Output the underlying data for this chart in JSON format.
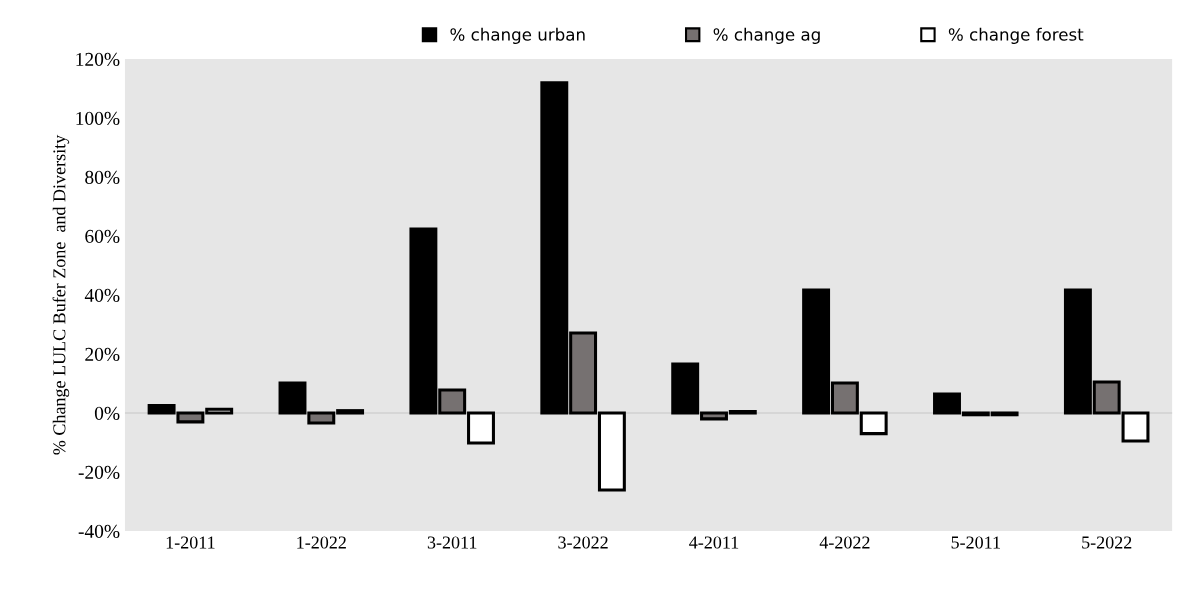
{
  "chart_data": {
    "type": "bar",
    "ylabel": "% Change LULC Bufer Zone  and Diversity",
    "categories": [
      "1-2011",
      "1-2022",
      "3-2011",
      "3-2022",
      "4-2011",
      "4-2022",
      "5-2011",
      "5-2022"
    ],
    "series": [
      {
        "name": "% change urban",
        "color": "#000000",
        "values": [
          2.5,
          10.2,
          62.4,
          111.9,
          16.6,
          41.7,
          6.4,
          41.7
        ]
      },
      {
        "name": "% change ag",
        "color": "#767171",
        "values": [
          -3,
          -3.4,
          7.8,
          27.1,
          -2,
          10.2,
          -0.6,
          10.5
        ]
      },
      {
        "name": "% change forest",
        "color": "#ffffff",
        "values": [
          1.3,
          0.8,
          -10.2,
          -26.1,
          0.5,
          -7,
          -0.6,
          -9.5
        ]
      }
    ],
    "ylim": [
      -40,
      120
    ],
    "yticks": [
      {
        "value": -40,
        "label": "-40%"
      },
      {
        "value": -20,
        "label": "-20%"
      },
      {
        "value": 0,
        "label": "0%"
      },
      {
        "value": 20,
        "label": "20%"
      },
      {
        "value": 40,
        "label": "40%"
      },
      {
        "value": 60,
        "label": "60%"
      },
      {
        "value": 80,
        "label": "80%"
      },
      {
        "value": 100,
        "label": "100%"
      },
      {
        "value": 120,
        "label": "120%"
      }
    ],
    "ref_lines": [
      {
        "axis": "y",
        "value": 0,
        "color": "#d0d0d0"
      }
    ],
    "grid": false,
    "legend": "top"
  }
}
